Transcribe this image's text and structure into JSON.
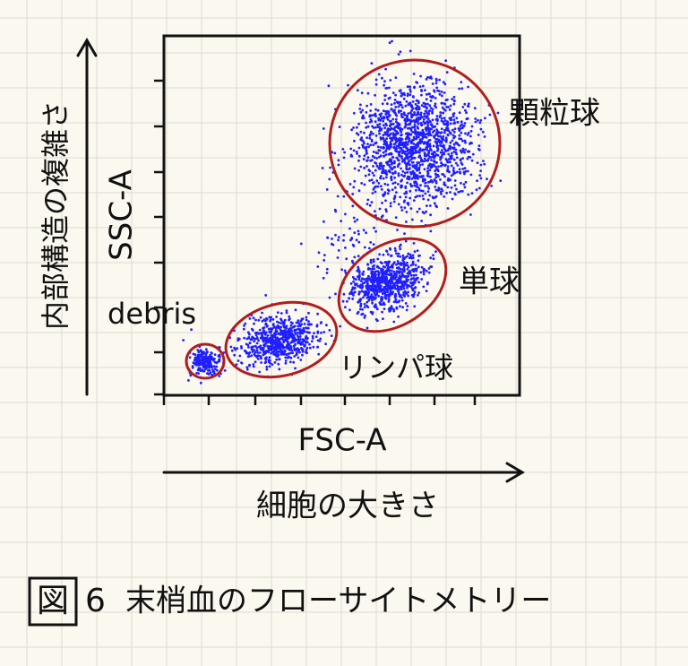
{
  "axes": {
    "y_label": "内部構造の複雑さ",
    "y_name": "SSC-A",
    "x_name": "FSC-A",
    "x_label": "細胞の大きさ"
  },
  "populations": [
    {
      "label": "debris"
    },
    {
      "label": "リンパ球"
    },
    {
      "label": "単球"
    },
    {
      "label": "顆粒球"
    }
  ],
  "caption": {
    "figure": "図",
    "number": "6",
    "title": "末梢血のフローサイトメトリー"
  }
}
